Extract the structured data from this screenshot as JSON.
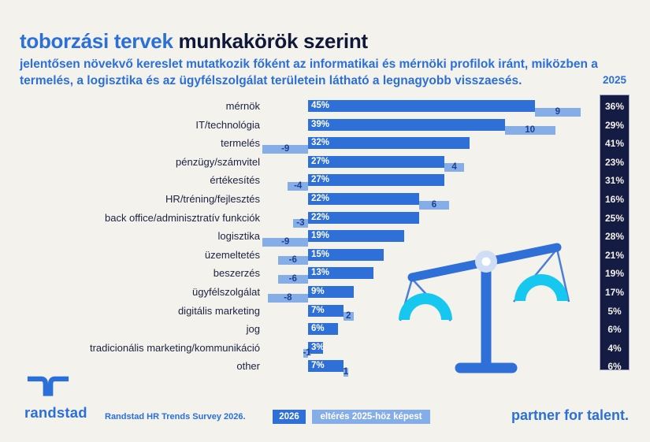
{
  "header": {
    "title_accent": "toborzási tervek",
    "title_rest": " munkakörök szerint",
    "subtitle": "jelentősen növekvő kereslet mutatkozik főként az informatikai és mérnöki profilok iránt, miközben a\ntermelés, a logisztika és az ügyfélszolgálat területein látható a legnagyobb visszaesés."
  },
  "chart_data": {
    "type": "bar",
    "orientation": "horizontal",
    "title": "toborzási tervek munkakörök szerint",
    "categories": [
      "mérnök",
      "IT/technológia",
      "termelés",
      "pénzügy/számvitel",
      "értékesítés",
      "HR/tréning/fejlesztés",
      "back office/adminisztratív funkciók",
      "logisztika",
      "üzemeltetés",
      "beszerzés",
      "ügyfélszolgálat",
      "digitális marketing",
      "jog",
      "tradicionális marketing/kommunikáció",
      "other"
    ],
    "series": [
      {
        "name": "2026",
        "values": [
          45,
          39,
          32,
          27,
          27,
          22,
          22,
          19,
          15,
          13,
          9,
          7,
          6,
          3,
          7
        ]
      },
      {
        "name": "2025",
        "values": [
          36,
          29,
          41,
          23,
          31,
          16,
          25,
          28,
          21,
          19,
          17,
          5,
          6,
          4,
          6
        ]
      },
      {
        "name": "eltérés 2025-höz képest",
        "values": [
          9,
          10,
          -9,
          4,
          -4,
          6,
          -3,
          -9,
          -6,
          -6,
          -8,
          2,
          0,
          -1,
          1
        ]
      }
    ],
    "value_suffix": "%",
    "xlim": [
      0,
      48
    ],
    "grid": false,
    "legend_position": "bottom",
    "notes": "main blue bars = 2026 plans with % labels; light blue offset bars = change vs 2025; dark navy right column lists 2025 values"
  },
  "legend_note": "2025 column header shown above dark column",
  "footer": {
    "source": "Randstad HR Trends Survey 2026.",
    "logo_text": "randstad",
    "tagline": "partner for talent."
  },
  "icons": {
    "balance_scale": "balance-scale-illustration",
    "logo_mark": "randstad-logo-icon"
  },
  "colors": {
    "accent": "#2b6fd9",
    "bar_2026": "#2e6fd8",
    "bar_diff": "#85ade8",
    "column_bg": "#141c44",
    "diff_text": "#1e3e8e",
    "cyan": "#16c7f0",
    "pivot": "#cfdef5",
    "background": "#f4f2ed"
  }
}
